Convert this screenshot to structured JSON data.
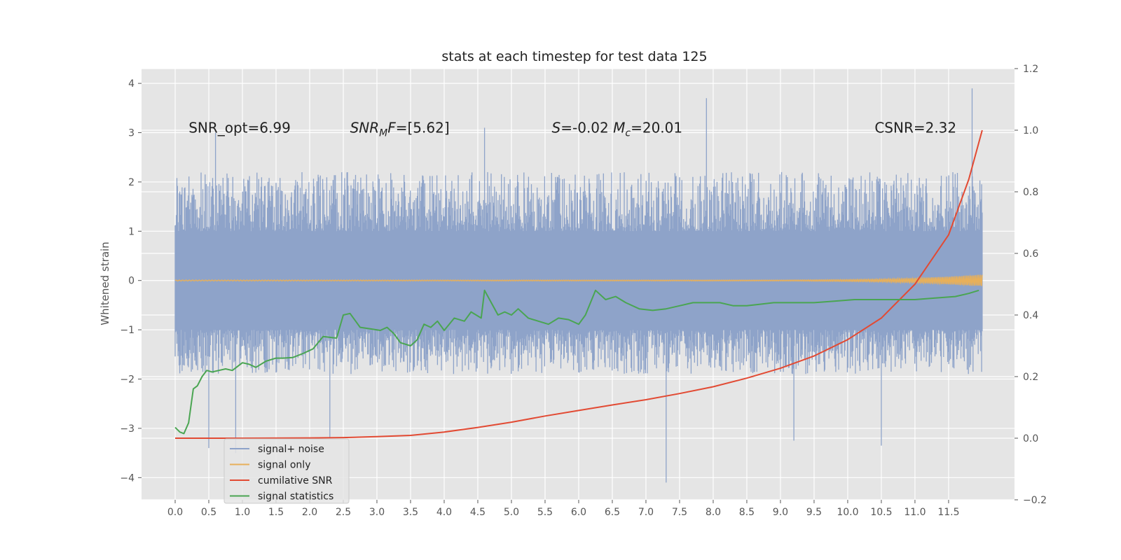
{
  "chart_data": {
    "type": "line",
    "title": "stats at each timestep for test data 125",
    "ylabel": "Whitened strain",
    "xlabel": "",
    "xlim": [
      -0.5,
      12.48
    ],
    "ylim": [
      -4.45,
      4.3
    ],
    "y2lim": [
      -0.2,
      1.2
    ],
    "grid": true,
    "legend_position": "lower-left",
    "x_ticks": [
      "0.0",
      "0.5",
      "1.0",
      "1.5",
      "2.0",
      "2.5",
      "3.0",
      "3.5",
      "4.0",
      "4.5",
      "5.0",
      "5.5",
      "6.0",
      "6.5",
      "7.0",
      "7.5",
      "8.0",
      "8.5",
      "9.0",
      "9.5",
      "10.0",
      "10.5",
      "11.0",
      "11.5"
    ],
    "y_ticks": [
      "4",
      "3",
      "2",
      "1",
      "0",
      "−1",
      "−2",
      "−3",
      "−4"
    ],
    "y2_ticks": [
      "1.2",
      "1.0",
      "0.8",
      "0.6",
      "0.4",
      "0.2",
      "0.0",
      "−0.2"
    ],
    "annotations": [
      {
        "text": "SNR_opt=6.99",
        "x": 0.2,
        "y": 3.1
      },
      {
        "text": "SNR_MF=[5.62]",
        "x": 2.6,
        "y": 3.1
      },
      {
        "text": "S=-0.02  M_c=20.01",
        "x": 5.6,
        "y": 3.1
      },
      {
        "text": "CSNR=2.32",
        "x": 10.4,
        "y": 3.1
      }
    ],
    "colors": {
      "background": "#e5e5e5",
      "grid": "#ffffff",
      "signal_noise": "#8ea3c9",
      "signal_only": "#e8b05a",
      "cumulative_snr": "#e24a33",
      "signal_statistics": "#4aa552"
    },
    "series": [
      {
        "name": "signal+ noise",
        "axis": "left",
        "kind": "noise-band",
        "x_range": [
          0.0,
          12.0
        ],
        "typical_range": [
          -1.9,
          2.2
        ],
        "extremes": [
          [
            0.5,
            -3.4
          ],
          [
            0.6,
            3.0
          ],
          [
            0.9,
            -3.5
          ],
          [
            2.3,
            -3.2
          ],
          [
            4.6,
            3.1
          ],
          [
            7.3,
            -4.1
          ],
          [
            7.9,
            3.7
          ],
          [
            9.2,
            -3.25
          ],
          [
            10.5,
            -3.35
          ],
          [
            11.85,
            3.9
          ]
        ]
      },
      {
        "name": "signal only",
        "axis": "left",
        "kind": "chirp",
        "x": [
          0.0,
          9.0,
          10.0,
          10.5,
          11.0,
          11.5,
          12.0
        ],
        "amplitude": [
          0.01,
          0.01,
          0.02,
          0.03,
          0.05,
          0.08,
          0.12
        ]
      },
      {
        "name": "cumilative SNR",
        "axis": "right",
        "x": [
          0.0,
          1.0,
          2.0,
          2.5,
          3.0,
          3.5,
          4.0,
          4.5,
          5.0,
          5.5,
          6.0,
          6.5,
          7.0,
          7.5,
          8.0,
          8.5,
          9.0,
          9.5,
          10.0,
          10.5,
          11.0,
          11.5,
          11.8,
          12.0
        ],
        "y": [
          0.0,
          0.0,
          0.001,
          0.002,
          0.005,
          0.009,
          0.02,
          0.035,
          0.052,
          0.072,
          0.09,
          0.108,
          0.125,
          0.145,
          0.167,
          0.195,
          0.227,
          0.267,
          0.32,
          0.39,
          0.5,
          0.66,
          0.84,
          1.0
        ]
      },
      {
        "name": "signal statistics",
        "axis": "right",
        "x": [
          0.0,
          0.07,
          0.13,
          0.2,
          0.27,
          0.33,
          0.4,
          0.47,
          0.55,
          0.65,
          0.75,
          0.85,
          1.0,
          1.1,
          1.2,
          1.35,
          1.5,
          1.6,
          1.75,
          1.9,
          2.05,
          2.2,
          2.4,
          2.5,
          2.6,
          2.75,
          2.9,
          3.05,
          3.15,
          3.25,
          3.35,
          3.5,
          3.6,
          3.7,
          3.8,
          3.9,
          4.0,
          4.15,
          4.3,
          4.4,
          4.55,
          4.6,
          4.7,
          4.8,
          4.9,
          5.0,
          5.1,
          5.25,
          5.4,
          5.55,
          5.7,
          5.85,
          6.0,
          6.1,
          6.25,
          6.4,
          6.55,
          6.7,
          6.9,
          7.1,
          7.3,
          7.5,
          7.7,
          7.9,
          8.1,
          8.3,
          8.5,
          8.7,
          8.9,
          9.1,
          9.3,
          9.5,
          9.8,
          10.1,
          10.4,
          10.7,
          11.0,
          11.3,
          11.6,
          11.8,
          11.95
        ],
        "y": [
          0.035,
          0.02,
          0.015,
          0.05,
          0.16,
          0.17,
          0.2,
          0.22,
          0.215,
          0.22,
          0.225,
          0.22,
          0.245,
          0.24,
          0.23,
          0.25,
          0.26,
          0.26,
          0.262,
          0.275,
          0.29,
          0.33,
          0.325,
          0.4,
          0.405,
          0.36,
          0.355,
          0.35,
          0.36,
          0.34,
          0.31,
          0.3,
          0.32,
          0.37,
          0.36,
          0.38,
          0.35,
          0.39,
          0.38,
          0.41,
          0.39,
          0.48,
          0.44,
          0.4,
          0.41,
          0.4,
          0.42,
          0.39,
          0.38,
          0.37,
          0.39,
          0.385,
          0.37,
          0.4,
          0.48,
          0.45,
          0.46,
          0.44,
          0.42,
          0.415,
          0.42,
          0.43,
          0.44,
          0.44,
          0.44,
          0.43,
          0.43,
          0.435,
          0.44,
          0.44,
          0.44,
          0.44,
          0.445,
          0.45,
          0.45,
          0.45,
          0.45,
          0.455,
          0.46,
          0.47,
          0.48
        ]
      }
    ]
  }
}
